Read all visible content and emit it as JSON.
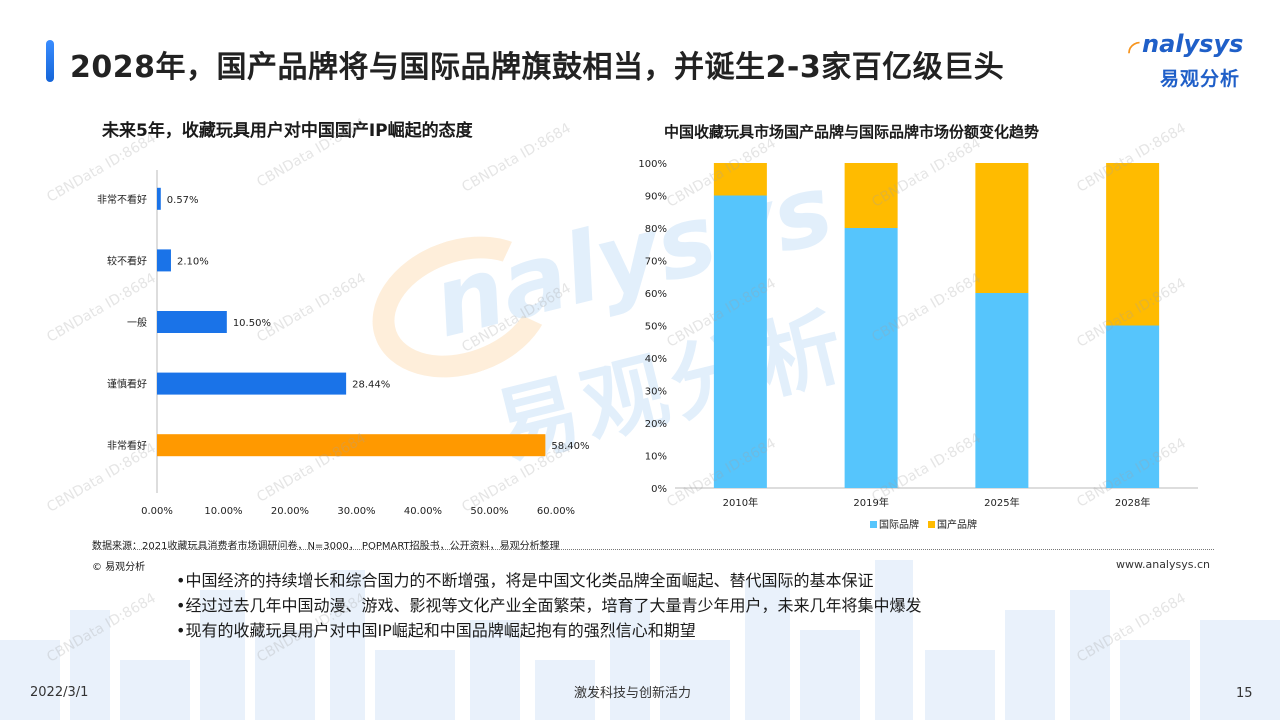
{
  "header": {
    "title": "2028年，国产品牌将与国际品牌旗鼓相当，并诞生2-3家百亿级巨头",
    "logo_en": "nalysys",
    "logo_cn": "易观分析"
  },
  "watermark": {
    "big_en": "nalysys",
    "big_cn": "易观分析",
    "small": "CBNData ID:8684"
  },
  "left_chart_title": "未来5年，收藏玩具用户对中国国产IP崛起的态度",
  "right_chart_title": "中国收藏玩具市场国产品牌与国际品牌市场份额变化趋势",
  "chart_data": [
    {
      "type": "bar",
      "orientation": "horizontal",
      "title": "未来5年，收藏玩具用户对中国国产IP崛起的态度",
      "categories": [
        "非常不看好",
        "较不看好",
        "一般",
        "谨慎看好",
        "非常看好"
      ],
      "values": [
        0.57,
        2.1,
        10.5,
        28.44,
        58.4
      ],
      "value_labels": [
        "0.57%",
        "2.10%",
        "10.50%",
        "28.44%",
        "58.40%"
      ],
      "bar_colors": [
        "#1a73e8",
        "#1a73e8",
        "#1a73e8",
        "#1a73e8",
        "#ff9900"
      ],
      "xlim": [
        0,
        60
      ],
      "x_ticks": [
        "0.00%",
        "10.00%",
        "20.00%",
        "30.00%",
        "40.00%",
        "50.00%",
        "60.00%"
      ]
    },
    {
      "type": "bar",
      "stacked": true,
      "percent": true,
      "title": "中国收藏玩具市场国产品牌与国际品牌市场份额变化趋势",
      "categories": [
        "2010年",
        "2019年",
        "2025年",
        "2028年"
      ],
      "series": [
        {
          "name": "国际品牌",
          "color": "#56c5fc",
          "values": [
            90,
            80,
            60,
            50
          ]
        },
        {
          "name": "国产品牌",
          "color": "#ffbb00",
          "values": [
            10,
            20,
            40,
            50
          ]
        }
      ],
      "ylim": [
        0,
        100
      ],
      "y_ticks": [
        "0%",
        "10%",
        "20%",
        "30%",
        "40%",
        "50%",
        "60%",
        "70%",
        "80%",
        "90%",
        "100%"
      ],
      "legend": "bottom"
    }
  ],
  "source_text": "数据来源：2021收藏玩具消费者市场调研问卷，N=3000， POPMART招股书，公开资料，易观分析整理",
  "copyright": "© 易观分析",
  "website": "www.analysys.cn",
  "bullets": [
    "•中国经济的持续增长和综合国力的不断增强，将是中国文化类品牌全面崛起、替代国际的基本保证",
    "•经过过去几年中国动漫、游戏、影视等文化产业全面繁荣，培育了大量青少年用户，未来几年将集中爆发",
    "•现有的收藏玩具用户对中国IP崛起和中国品牌崛起抱有的强烈信心和期望"
  ],
  "footer": {
    "date": "2022/3/1",
    "slogan": "激发科技与创新活力",
    "page": "15"
  },
  "colors": {
    "accent": "#1565d8",
    "brand_orange": "#f7941d",
    "bar_blue": "#1a73e8",
    "bar_orange": "#ff9900",
    "intl_blue": "#56c5fc",
    "domestic_yellow": "#ffbb00"
  }
}
